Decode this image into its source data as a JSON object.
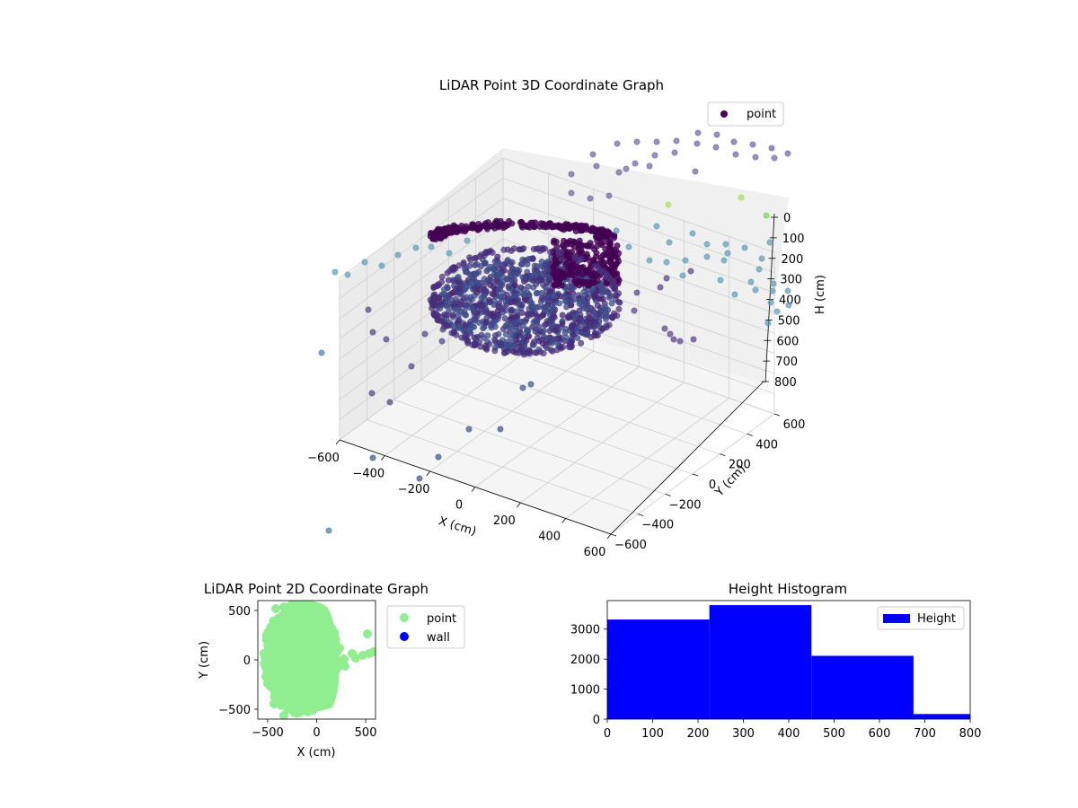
{
  "chart_data": [
    {
      "type": "scatter",
      "title": "LiDAR Point 3D Coordinate Graph",
      "xlabel": "X (cm)",
      "ylabel": "Y (cm)",
      "zlabel": "H (cm)",
      "xlim": [
        -600,
        600
      ],
      "ylim": [
        -600,
        600
      ],
      "zlim": [
        0,
        800
      ],
      "z_inverted": true,
      "xticks": [
        "−600",
        "−400",
        "−200",
        "0",
        "200",
        "400",
        "600"
      ],
      "yticks": [
        "−600",
        "−400",
        "−200",
        "0",
        "200",
        "400",
        "600"
      ],
      "zticks": [
        "0",
        "100",
        "200",
        "300",
        "400",
        "500",
        "600",
        "700",
        "800"
      ],
      "colormap": "viridis",
      "legend": [
        {
          "label": "point",
          "color": "#440154"
        }
      ],
      "legend_position": "top-right",
      "grid": true
    },
    {
      "type": "scatter",
      "title": "LiDAR Point 2D Coordinate Graph",
      "xlabel": "X (cm)",
      "ylabel": "Y (cm)",
      "xlim": [
        -600,
        600
      ],
      "ylim": [
        -600,
        600
      ],
      "xticks": [
        "−500",
        "0",
        "500"
      ],
      "yticks": [
        "−500",
        "0",
        "500"
      ],
      "series": [
        {
          "name": "point",
          "color": "#90ee90"
        },
        {
          "name": "wall",
          "color": "#0000ff"
        }
      ],
      "legend_position": "outside-right"
    },
    {
      "type": "bar",
      "title": "Height Histogram",
      "xlim": [
        0,
        800
      ],
      "ylim": [
        0,
        3950
      ],
      "xticks": [
        "0",
        "100",
        "200",
        "300",
        "400",
        "500",
        "600",
        "700",
        "800"
      ],
      "yticks": [
        "0",
        "1000",
        "2000",
        "3000"
      ],
      "bins": [
        [
          0,
          225
        ],
        [
          225,
          450
        ],
        [
          450,
          675
        ],
        [
          675,
          800
        ]
      ],
      "series": [
        {
          "name": "Height",
          "values": [
            3320,
            3800,
            2110,
            170
          ],
          "color": "#0000ff"
        }
      ],
      "legend_position": "top-right"
    }
  ]
}
